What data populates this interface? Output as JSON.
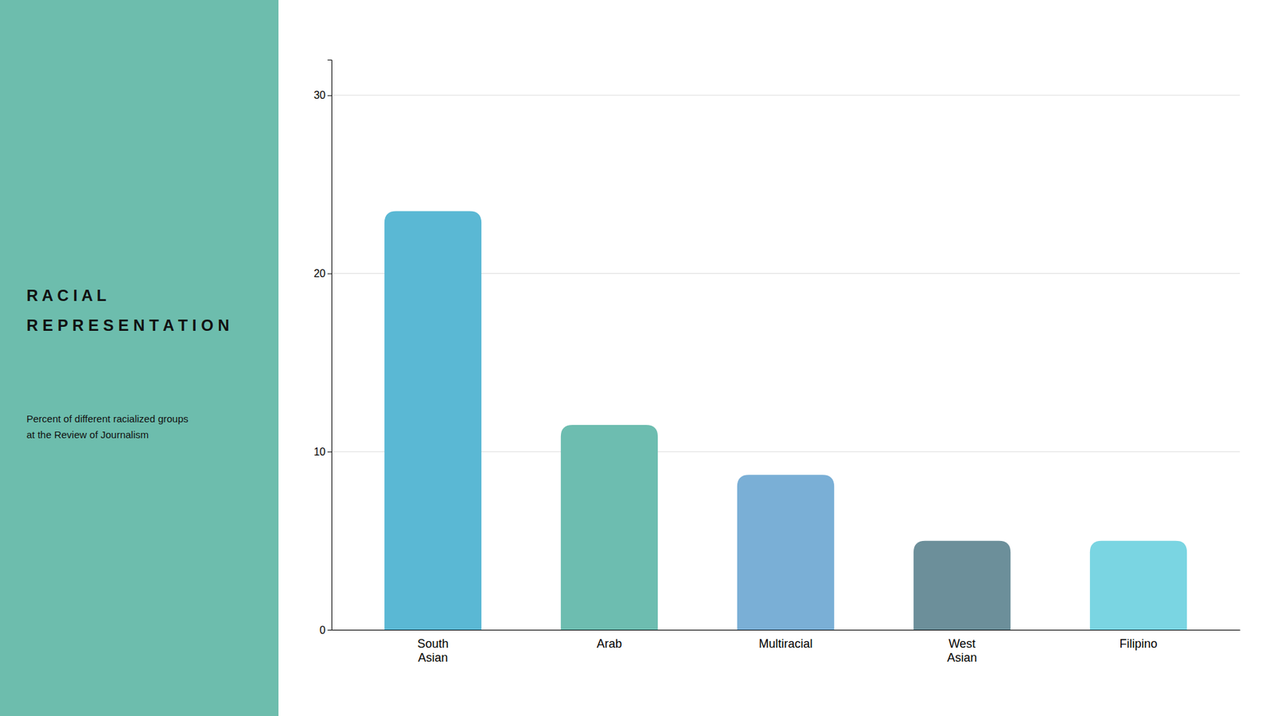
{
  "chart_data": {
    "type": "bar",
    "title": "R A C I A L\nR E P R E S E N T A T I O N",
    "subtitle": "Percent of different racialized groups\nat the Review of Journalism",
    "categories": [
      "South\nAsian",
      "Arab",
      "Multiracial",
      "West\nAsian",
      "Filipino"
    ],
    "values": [
      23.5,
      11.5,
      8.7,
      5.0,
      5.0
    ],
    "colors": [
      "#5AB8D4",
      "#6DBDB0",
      "#7AAFD6",
      "#6C8F9A",
      "#7AD5E2"
    ],
    "ylim": [
      0,
      32
    ],
    "yticks": [
      0,
      10,
      20,
      30
    ],
    "grid": true
  }
}
